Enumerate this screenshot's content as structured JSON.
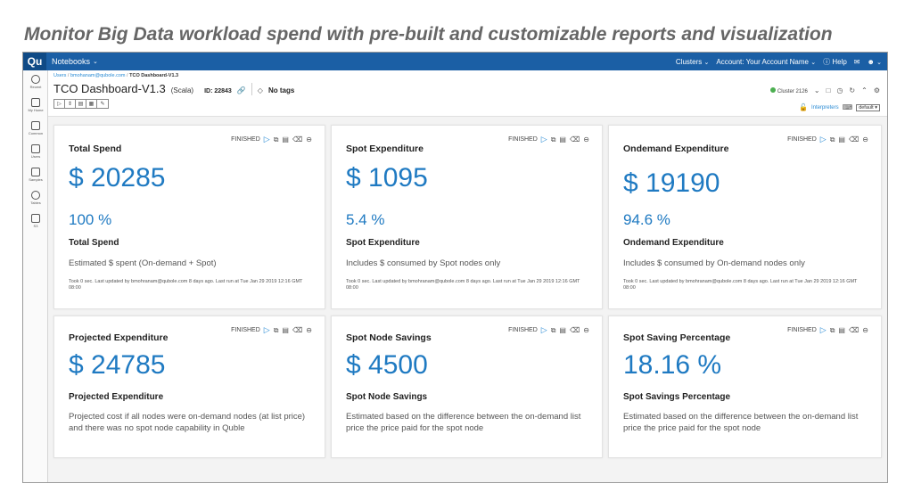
{
  "headline": "Monitor Big Data workload spend with pre-built and customizable reports and visualization",
  "topbar": {
    "logo": "Qu",
    "menu": "Notebooks",
    "clusters": "Clusters",
    "account": "Account: Your Account Name",
    "help": "Help"
  },
  "sidebar": {
    "items": [
      {
        "label": "Recent",
        "icon": "clock-icon"
      },
      {
        "label": "My Home",
        "icon": "home-icon"
      },
      {
        "label": "Common",
        "icon": "folder-icon"
      },
      {
        "label": "Users",
        "icon": "users-icon"
      },
      {
        "label": "Samples",
        "icon": "samples-icon"
      },
      {
        "label": "Tables",
        "icon": "tables-icon"
      },
      {
        "label": "S3",
        "icon": "bucket-icon"
      }
    ]
  },
  "breadcrumb": {
    "root": "Users",
    "user": "bmohanam@qubole.com",
    "current": "TCO Dashboard-V1.3"
  },
  "notebook": {
    "title": "TCO Dashboard-V1.3",
    "lang": "(Scala)",
    "id": "ID: 22843",
    "tags": "No tags"
  },
  "cluster": {
    "name": "Cluster 2126",
    "status_color": "#4caf50"
  },
  "interpreters": {
    "label": "Interpreters",
    "default": "default"
  },
  "status_label": "FINISHED",
  "colors": {
    "accent": "#1f7ac2",
    "topbar": "#1b5fa5"
  },
  "cards": [
    {
      "title": "Total Spend",
      "big": "$ 20285",
      "pct": "100 %",
      "sub": "Total Spend",
      "desc": "Estimated $ spent (On-demand + Spot)",
      "meta": "Took 0 sec. Last updated by bmohranam@qubole.com 8 days ago. Last run at Tue Jan 29 2019 12:16 GMT 08:00"
    },
    {
      "title": "Spot Expenditure",
      "big": "$ 1095",
      "pct": "5.4 %",
      "sub": "Spot Expenditure",
      "desc": "Includes $ consumed by Spot nodes only",
      "meta": "Took 0 sec. Last updated by bmohranam@qubole.com 8 days ago. Last run at Tue Jan 29 2019 12:16 GMT 08:00"
    },
    {
      "title": "Ondemand Expenditure",
      "big": "$ 19190",
      "pct": "94.6 %",
      "sub": "Ondemand Expenditure",
      "desc": "Includes $ consumed by On-demand nodes only",
      "meta": "Took 0 sec. Last updated by bmohranam@qubole.com 8 days ago. Last run at Tue Jan 29 2019 12:16 GMT 08:00"
    },
    {
      "title": "Projected Expenditure",
      "big": "$ 24785",
      "sub": "Projected Expenditure",
      "desc": "Projected cost if all nodes were on-demand nodes (at list price) and there was no spot node capability in Quble"
    },
    {
      "title": "Spot Node Savings",
      "big": "$ 4500",
      "sub": "Spot Node Savings",
      "desc": "Estimated based on the difference between the on-demand list price the price paid for the spot node"
    },
    {
      "title": "Spot Saving Percentage",
      "big": "18.16 %",
      "sub": "Spot Savings Percentage",
      "desc": "Estimated based on the difference between the on-demand list price the price paid for the spot node"
    }
  ]
}
